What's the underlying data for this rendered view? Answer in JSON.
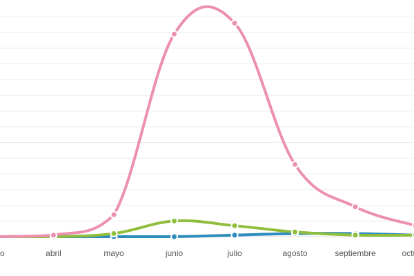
{
  "chart_data": {
    "type": "line",
    "categories": [
      "marzo",
      "abril",
      "mayo",
      "junio",
      "julio",
      "agosto",
      "septiembre",
      "octubre"
    ],
    "series": [
      {
        "color": "#ec8fb0",
        "values": [
          0,
          1,
          14,
          129,
          136,
          46,
          19,
          7
        ]
      },
      {
        "color": "#8fbe3c",
        "values": [
          0,
          0,
          2,
          10,
          7,
          3,
          1,
          1
        ]
      },
      {
        "color": "#2d8cbe",
        "values": [
          0,
          0,
          0,
          0,
          1,
          2,
          2,
          1
        ]
      }
    ],
    "ylim": [
      0,
      140
    ],
    "grid": true,
    "legend": "none"
  }
}
